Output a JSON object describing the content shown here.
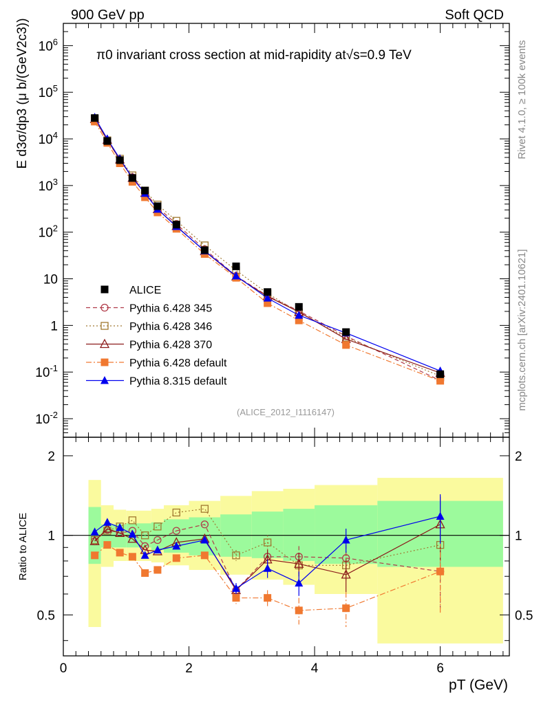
{
  "header": {
    "left": "900 GeV pp",
    "right": "Soft QCD"
  },
  "side_labels": {
    "rivet": "Rivet 4.1.0, ≥ 100k events",
    "mcplots": "mcplots.cern.ch [arXiv:2401.10621]"
  },
  "chart_data": [
    {
      "type": "scatter",
      "title": "π0 invariant cross section at mid-rapidity at√s=0.9 TeV",
      "xlabel": "pT (GeV)",
      "ylabel": "E d3σ/dp3 (μ b/(GeV2c3))",
      "xlim": [
        0,
        7.1
      ],
      "ylim": [
        0.004,
        3000000
      ],
      "yscale": "log",
      "ytick_labels": [
        "10^-2",
        "10^-1",
        "1",
        "10",
        "10^2",
        "10^3",
        "10^4",
        "10^5",
        "10^6"
      ],
      "xtick_labels": [
        "0",
        "2",
        "4",
        "6"
      ],
      "analysis_tag": "(ALICE_2012_I1116147)",
      "x": [
        0.5,
        0.7,
        0.9,
        1.1,
        1.3,
        1.5,
        1.8,
        2.25,
        2.75,
        3.25,
        3.75,
        4.5,
        6.0
      ],
      "series": [
        {
          "name": "ALICE",
          "color": "#000000",
          "style": "solid",
          "marker": "square-filled",
          "values": [
            28000,
            9000,
            3500,
            1450,
            780,
            360,
            145,
            41,
            18.5,
            5.2,
            2.5,
            0.72,
            0.09
          ]
        },
        {
          "name": "Pythia 6.428 345",
          "color": "#b03a48",
          "style": "dashed",
          "marker": "circle-open",
          "values": [
            26500,
            9400,
            3550,
            1500,
            710,
            340,
            150,
            43,
            11.5,
            4.3,
            2.05,
            0.59,
            0.066
          ]
        },
        {
          "name": "Pythia 6.428 346",
          "color": "#a07830",
          "style": "dotted",
          "marker": "square-open",
          "values": [
            27000,
            9300,
            3750,
            1650,
            780,
            390,
            175,
            52,
            15.2,
            4.85,
            1.9,
            0.55,
            0.082
          ]
        },
        {
          "name": "Pythia 6.428 370",
          "color": "#8b1a1a",
          "style": "solid",
          "marker": "triangle-open",
          "values": [
            26500,
            9500,
            3600,
            1450,
            690,
            310,
            135,
            39,
            11.2,
            4.2,
            1.95,
            0.51,
            0.096
          ]
        },
        {
          "name": "Pythia 6.428 default",
          "color": "#f07830",
          "style": "dashdot",
          "marker": "square-filled",
          "values": [
            23500,
            8200,
            3000,
            1200,
            560,
            265,
            118,
            34,
            10.5,
            3.0,
            1.28,
            0.38,
            0.065
          ]
        },
        {
          "name": "Pythia 8.315 default",
          "color": "#0000ee",
          "style": "solid",
          "marker": "triangle-filled",
          "values": [
            29000,
            10000,
            3750,
            1460,
            680,
            310,
            132,
            39.5,
            11.5,
            3.85,
            1.65,
            0.69,
            0.106
          ]
        }
      ]
    },
    {
      "type": "scatter",
      "title": "",
      "xlabel": "pT (GeV)",
      "ylabel": "Ratio to ALICE",
      "xlim": [
        0,
        7.1
      ],
      "ylim": [
        0.35,
        2.35
      ],
      "yscale": "log",
      "ytick_labels": [
        "0.5",
        "1",
        "2"
      ],
      "reference_line": 1,
      "bands": {
        "edges": [
          0.4,
          0.6,
          0.8,
          1.0,
          1.2,
          1.4,
          1.6,
          2.0,
          2.5,
          3.0,
          3.5,
          4.0,
          5.0,
          7.0
        ],
        "green_low": [
          0.78,
          0.9,
          0.9,
          0.9,
          0.9,
          0.88,
          0.86,
          0.84,
          0.83,
          0.82,
          0.8,
          0.78,
          0.76
        ],
        "green_high": [
          1.28,
          1.1,
          1.1,
          1.11,
          1.11,
          1.12,
          1.15,
          1.17,
          1.2,
          1.23,
          1.26,
          1.3,
          1.35
        ],
        "yellow_low": [
          0.45,
          0.76,
          0.8,
          0.8,
          0.8,
          0.79,
          0.77,
          0.74,
          0.71,
          0.68,
          0.65,
          0.6,
          0.39
        ],
        "yellow_high": [
          1.62,
          1.3,
          1.25,
          1.24,
          1.24,
          1.26,
          1.3,
          1.35,
          1.41,
          1.47,
          1.5,
          1.55,
          1.65
        ],
        "colors": {
          "green": "#9cfa9c",
          "yellow": "#fafa9e"
        }
      },
      "series": [
        {
          "name": "Pythia 6.428 345",
          "values": [
            0.95,
            1.05,
            1.02,
            1.04,
            0.91,
            0.96,
            1.04,
            1.1,
            0.62,
            0.83,
            0.83,
            0.82,
            0.73
          ],
          "errors": [
            0,
            0,
            0,
            0,
            0,
            0,
            0,
            0,
            0.03,
            0.06,
            0.08,
            0.1,
            0.2
          ]
        },
        {
          "name": "Pythia 6.428 346",
          "values": [
            0.96,
            1.04,
            1.08,
            1.14,
            1.0,
            1.08,
            1.22,
            1.26,
            0.84,
            0.94,
            0.77,
            0.77,
            0.92
          ],
          "errors": [
            0,
            0,
            0,
            0,
            0,
            0,
            0,
            0,
            0.04,
            0.06,
            0.07,
            0.1,
            0.25
          ]
        },
        {
          "name": "Pythia 6.428 370",
          "values": [
            0.95,
            1.06,
            1.02,
            0.97,
            0.88,
            0.87,
            0.94,
            0.97,
            0.62,
            0.81,
            0.78,
            0.71,
            1.1
          ],
          "errors": [
            0,
            0,
            0,
            0,
            0,
            0,
            0,
            0,
            0.03,
            0.07,
            0.08,
            0.1,
            0.3
          ]
        },
        {
          "name": "Pythia 6.428 default",
          "values": [
            0.84,
            0.92,
            0.86,
            0.83,
            0.72,
            0.74,
            0.82,
            0.84,
            0.58,
            0.58,
            0.52,
            0.53,
            0.73
          ],
          "errors": [
            0,
            0,
            0,
            0,
            0,
            0,
            0,
            0,
            0.03,
            0.04,
            0.06,
            0.08,
            0.22
          ]
        },
        {
          "name": "Pythia 8.315 default",
          "values": [
            1.03,
            1.12,
            1.07,
            1.01,
            0.84,
            0.88,
            0.91,
            0.96,
            0.63,
            0.75,
            0.66,
            0.96,
            1.18
          ],
          "errors": [
            0,
            0,
            0,
            0,
            0,
            0,
            0,
            0,
            0.03,
            0.06,
            0.07,
            0.1,
            0.25
          ]
        }
      ]
    }
  ]
}
